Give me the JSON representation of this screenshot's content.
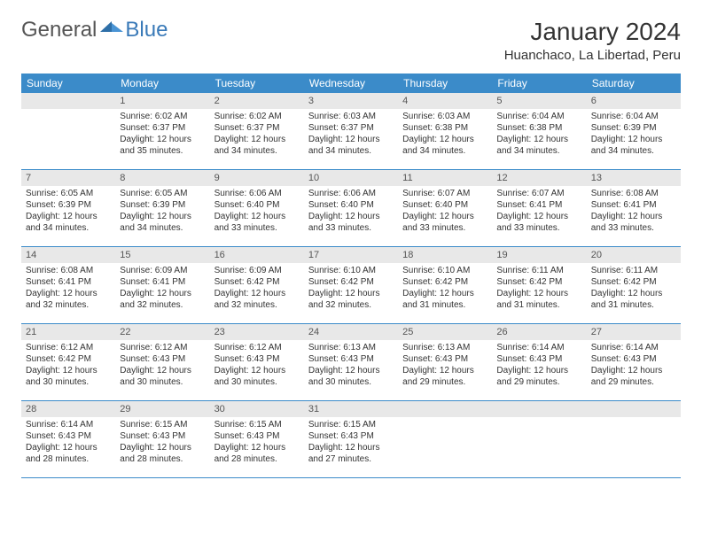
{
  "logo": {
    "general": "General",
    "blue": "Blue"
  },
  "title": "January 2024",
  "location": "Huanchaco, La Libertad, Peru",
  "colors": {
    "header_bg": "#3b8bc9",
    "header_fg": "#ffffff",
    "daynum_bg": "#e8e8e8",
    "border": "#3b8bc9",
    "logo_blue": "#3a7ab8"
  },
  "dayNames": [
    "Sunday",
    "Monday",
    "Tuesday",
    "Wednesday",
    "Thursday",
    "Friday",
    "Saturday"
  ],
  "weeks": [
    [
      null,
      {
        "n": "1",
        "sr": "6:02 AM",
        "ss": "6:37 PM",
        "dl": "12 hours and 35 minutes."
      },
      {
        "n": "2",
        "sr": "6:02 AM",
        "ss": "6:37 PM",
        "dl": "12 hours and 34 minutes."
      },
      {
        "n": "3",
        "sr": "6:03 AM",
        "ss": "6:37 PM",
        "dl": "12 hours and 34 minutes."
      },
      {
        "n": "4",
        "sr": "6:03 AM",
        "ss": "6:38 PM",
        "dl": "12 hours and 34 minutes."
      },
      {
        "n": "5",
        "sr": "6:04 AM",
        "ss": "6:38 PM",
        "dl": "12 hours and 34 minutes."
      },
      {
        "n": "6",
        "sr": "6:04 AM",
        "ss": "6:39 PM",
        "dl": "12 hours and 34 minutes."
      }
    ],
    [
      {
        "n": "7",
        "sr": "6:05 AM",
        "ss": "6:39 PM",
        "dl": "12 hours and 34 minutes."
      },
      {
        "n": "8",
        "sr": "6:05 AM",
        "ss": "6:39 PM",
        "dl": "12 hours and 34 minutes."
      },
      {
        "n": "9",
        "sr": "6:06 AM",
        "ss": "6:40 PM",
        "dl": "12 hours and 33 minutes."
      },
      {
        "n": "10",
        "sr": "6:06 AM",
        "ss": "6:40 PM",
        "dl": "12 hours and 33 minutes."
      },
      {
        "n": "11",
        "sr": "6:07 AM",
        "ss": "6:40 PM",
        "dl": "12 hours and 33 minutes."
      },
      {
        "n": "12",
        "sr": "6:07 AM",
        "ss": "6:41 PM",
        "dl": "12 hours and 33 minutes."
      },
      {
        "n": "13",
        "sr": "6:08 AM",
        "ss": "6:41 PM",
        "dl": "12 hours and 33 minutes."
      }
    ],
    [
      {
        "n": "14",
        "sr": "6:08 AM",
        "ss": "6:41 PM",
        "dl": "12 hours and 32 minutes."
      },
      {
        "n": "15",
        "sr": "6:09 AM",
        "ss": "6:41 PM",
        "dl": "12 hours and 32 minutes."
      },
      {
        "n": "16",
        "sr": "6:09 AM",
        "ss": "6:42 PM",
        "dl": "12 hours and 32 minutes."
      },
      {
        "n": "17",
        "sr": "6:10 AM",
        "ss": "6:42 PM",
        "dl": "12 hours and 32 minutes."
      },
      {
        "n": "18",
        "sr": "6:10 AM",
        "ss": "6:42 PM",
        "dl": "12 hours and 31 minutes."
      },
      {
        "n": "19",
        "sr": "6:11 AM",
        "ss": "6:42 PM",
        "dl": "12 hours and 31 minutes."
      },
      {
        "n": "20",
        "sr": "6:11 AM",
        "ss": "6:42 PM",
        "dl": "12 hours and 31 minutes."
      }
    ],
    [
      {
        "n": "21",
        "sr": "6:12 AM",
        "ss": "6:42 PM",
        "dl": "12 hours and 30 minutes."
      },
      {
        "n": "22",
        "sr": "6:12 AM",
        "ss": "6:43 PM",
        "dl": "12 hours and 30 minutes."
      },
      {
        "n": "23",
        "sr": "6:12 AM",
        "ss": "6:43 PM",
        "dl": "12 hours and 30 minutes."
      },
      {
        "n": "24",
        "sr": "6:13 AM",
        "ss": "6:43 PM",
        "dl": "12 hours and 30 minutes."
      },
      {
        "n": "25",
        "sr": "6:13 AM",
        "ss": "6:43 PM",
        "dl": "12 hours and 29 minutes."
      },
      {
        "n": "26",
        "sr": "6:14 AM",
        "ss": "6:43 PM",
        "dl": "12 hours and 29 minutes."
      },
      {
        "n": "27",
        "sr": "6:14 AM",
        "ss": "6:43 PM",
        "dl": "12 hours and 29 minutes."
      }
    ],
    [
      {
        "n": "28",
        "sr": "6:14 AM",
        "ss": "6:43 PM",
        "dl": "12 hours and 28 minutes."
      },
      {
        "n": "29",
        "sr": "6:15 AM",
        "ss": "6:43 PM",
        "dl": "12 hours and 28 minutes."
      },
      {
        "n": "30",
        "sr": "6:15 AM",
        "ss": "6:43 PM",
        "dl": "12 hours and 28 minutes."
      },
      {
        "n": "31",
        "sr": "6:15 AM",
        "ss": "6:43 PM",
        "dl": "12 hours and 27 minutes."
      },
      null,
      null,
      null
    ]
  ],
  "labels": {
    "sunrise": "Sunrise:",
    "sunset": "Sunset:",
    "daylight": "Daylight:"
  }
}
